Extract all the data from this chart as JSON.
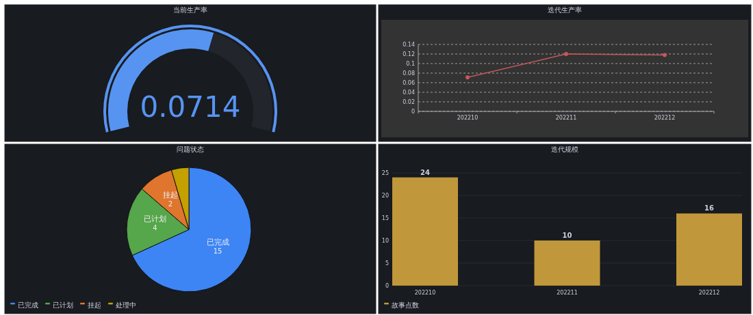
{
  "chart_data": [
    {
      "type": "donut",
      "title": "当前生产率",
      "categories": [
        null,
        null
      ],
      "values": [
        58,
        42
      ],
      "colors": [
        "#5794f2",
        "#22252b"
      ],
      "annotations": [
        "0.0714"
      ]
    },
    {
      "type": "line",
      "title": "迭代生产率",
      "categories": [
        "202210",
        "202211",
        "202212"
      ],
      "series": [
        {
          "color": "#c4585c",
          "values": [
            0.071,
            0.12,
            0.118
          ]
        }
      ],
      "ylim": [
        0,
        0.14
      ],
      "yticks": [
        0,
        0.02,
        0.04,
        0.06,
        0.08,
        0.1,
        0.12,
        0.14
      ],
      "grid": "y",
      "marker": "circle"
    },
    {
      "type": "pie",
      "title": "问题状态",
      "categories": [
        "已完成",
        "已计划",
        "挂起",
        "处理中"
      ],
      "values": [
        15,
        4,
        2,
        1
      ],
      "colors": [
        "#3d85f5",
        "#56a64b",
        "#e0752d",
        "#c4a000"
      ],
      "value_labels": [
        "15",
        "4",
        "2",
        null
      ],
      "legend": "bottom"
    },
    {
      "type": "bar",
      "title": "迭代规模",
      "categories": [
        "202210",
        "202211",
        "202212"
      ],
      "series": [
        {
          "name": "故事点数",
          "color": "#c0973a",
          "values": [
            24,
            10,
            16
          ]
        }
      ],
      "ylim": [
        0,
        25
      ],
      "yticks": [
        0,
        5,
        10,
        15,
        20,
        25
      ],
      "grid": "y",
      "data_labels": true,
      "legend": "bottom"
    }
  ]
}
